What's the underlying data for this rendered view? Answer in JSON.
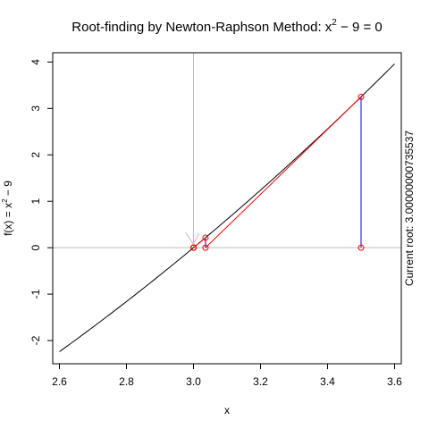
{
  "chart_data": {
    "type": "line",
    "title": "Root-finding by Newton-Raphson Method: x",
    "title_sup": "2",
    "title_tail": " − 9 = 0",
    "xlabel": "x",
    "ylabel": "f(x) = x",
    "ylabel_sup": "2",
    "ylabel_tail": " − 9",
    "xlim": [
      2.58,
      3.62
    ],
    "ylim": [
      -2.5,
      4.2
    ],
    "x_ticks": [
      2.6,
      2.8,
      3.0,
      3.2,
      3.4,
      3.6
    ],
    "x_tick_labels": [
      "2.6",
      "2.8",
      "3.0",
      "3.2",
      "3.4",
      "3.6"
    ],
    "y_ticks": [
      -2,
      -1,
      0,
      1,
      2,
      3,
      4
    ],
    "y_tick_labels": [
      "-2",
      "-1",
      "0",
      "1",
      "2",
      "3",
      "4"
    ],
    "curve": {
      "function": "x^2 - 9",
      "x_from": 2.6,
      "x_to": 3.6,
      "color": "#000000"
    },
    "reference_lines": {
      "h": 0,
      "v": 3.0,
      "color": "#bebebe"
    },
    "iterations": [
      {
        "x": 3.5,
        "fx": 3.25
      },
      {
        "x": 3.0357142857,
        "fx": 0.2155612245
      },
      {
        "x": 3.000210084,
        "fx": 0.00126054
      },
      {
        "x": 3.0000000074,
        "fx": 4.41e-08
      }
    ],
    "colors": {
      "tangent": "#ff0000",
      "drop": "#0000ff",
      "point": "#ff0000",
      "arrow": "#bebebe"
    },
    "side_text": "Current root: 3.00000000735537"
  }
}
